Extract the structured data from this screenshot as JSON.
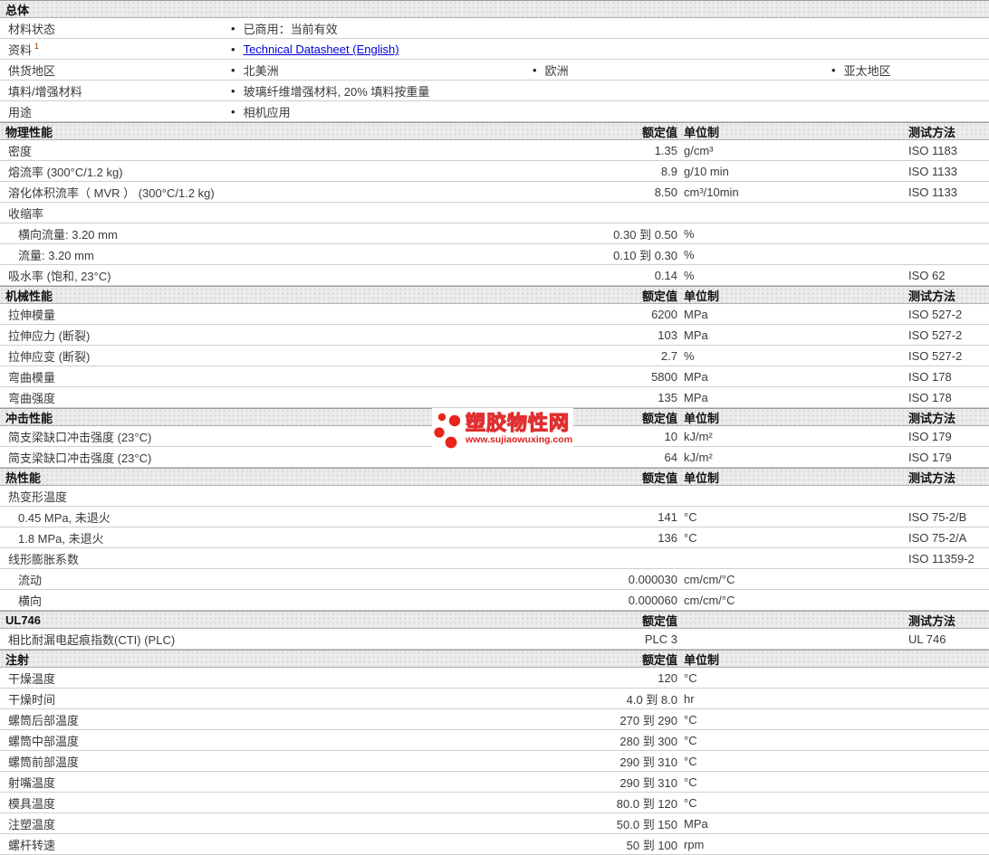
{
  "watermark": {
    "name": "塑胶物性网",
    "url": "www.sujiaowuxing.com"
  },
  "colors": {
    "accent_red": "#e02020",
    "link_blue": "#0000dd",
    "header_bg": "#ececec",
    "row_border": "#cfcfcf"
  },
  "sections": [
    {
      "id": "general",
      "type": "general",
      "title": "总体",
      "rows": [
        {
          "label": "材料状态",
          "items": [
            {
              "text": "已商用：当前有效"
            }
          ]
        },
        {
          "label": "资料",
          "label_sup": "1",
          "items": [
            {
              "text": "Technical Datasheet (English)",
              "link": true
            }
          ]
        },
        {
          "label": "供货地区",
          "items": [
            {
              "text": "北美洲"
            },
            {
              "text": "欧洲"
            },
            {
              "text": "亚太地区"
            }
          ]
        },
        {
          "label": "填料/增强材料",
          "items": [
            {
              "text": "玻璃纤维增强材料, 20% 填料按重量"
            }
          ]
        },
        {
          "label": "用途",
          "items": [
            {
              "text": "相机应用"
            }
          ]
        }
      ]
    },
    {
      "id": "physical",
      "type": "props",
      "title": "物理性能",
      "columns": {
        "value": "额定值",
        "unit": "单位制",
        "method": "测试方法"
      },
      "rows": [
        {
          "label": "密度",
          "value": "1.35",
          "unit": "g/cm³",
          "method": "ISO 1183"
        },
        {
          "label": "熔流率  (300°C/1.2 kg)",
          "value": "8.9",
          "unit": "g/10 min",
          "method": "ISO 1133"
        },
        {
          "label": "溶化体积流率（ MVR ）  (300°C/1.2 kg)",
          "value": "8.50",
          "unit": "cm³/10min",
          "method": "ISO 1133"
        },
        {
          "label": "收缩率"
        },
        {
          "label": "横向流量: 3.20 mm",
          "indent": true,
          "value": "0.30 到  0.50",
          "unit": "%"
        },
        {
          "label": "流量: 3.20 mm",
          "indent": true,
          "value": "0.10 到  0.30",
          "unit": "%"
        },
        {
          "label": "吸水率  (饱和, 23°C)",
          "value": "0.14",
          "unit": "%",
          "method": "ISO 62"
        }
      ]
    },
    {
      "id": "mechanical",
      "type": "props",
      "title": "机械性能",
      "columns": {
        "value": "额定值",
        "unit": "单位制",
        "method": "测试方法"
      },
      "rows": [
        {
          "label": "拉伸模量",
          "value": "6200",
          "unit": "MPa",
          "method": "ISO 527-2"
        },
        {
          "label": "拉伸应力  (断裂)",
          "value": "103",
          "unit": "MPa",
          "method": "ISO 527-2"
        },
        {
          "label": "拉伸应变  (断裂)",
          "value": "2.7",
          "unit": "%",
          "method": "ISO 527-2"
        },
        {
          "label": "弯曲模量",
          "value": "5800",
          "unit": "MPa",
          "method": "ISO 178"
        },
        {
          "label": "弯曲强度",
          "value": "135",
          "unit": "MPa",
          "method": "ISO 178"
        }
      ]
    },
    {
      "id": "impact",
      "type": "props",
      "title": "冲击性能",
      "columns": {
        "value": "额定值",
        "unit": "单位制",
        "method": "测试方法"
      },
      "rows": [
        {
          "label": "简支梁缺口冲击强度  (23°C)",
          "value": "10",
          "unit": "kJ/m²",
          "method": "ISO 179"
        },
        {
          "label": "简支梁缺口冲击强度  (23°C)",
          "value": "64",
          "unit": "kJ/m²",
          "method": "ISO 179"
        }
      ]
    },
    {
      "id": "thermal",
      "type": "props",
      "title": "热性能",
      "columns": {
        "value": "额定值",
        "unit": "单位制",
        "method": "测试方法"
      },
      "rows": [
        {
          "label": "热变形温度"
        },
        {
          "label": "0.45 MPa, 未退火",
          "indent": true,
          "value": "141",
          "unit": "°C",
          "method": "ISO 75-2/B"
        },
        {
          "label": "1.8 MPa, 未退火",
          "indent": true,
          "value": "136",
          "unit": "°C",
          "method": "ISO 75-2/A"
        },
        {
          "label": "线形膨胀系数",
          "method": "ISO 11359-2"
        },
        {
          "label": "流动",
          "indent": true,
          "value": "0.000030",
          "unit": "cm/cm/°C"
        },
        {
          "label": "横向",
          "indent": true,
          "value": "0.000060",
          "unit": "cm/cm/°C"
        }
      ]
    },
    {
      "id": "ul746",
      "type": "props",
      "title": "UL746",
      "columns": {
        "value": "额定值",
        "method": "测试方法"
      },
      "rows": [
        {
          "label": "相比耐漏电起痕指数(CTI) (PLC)",
          "value": "PLC 3",
          "method": "UL 746"
        }
      ]
    },
    {
      "id": "injection",
      "type": "props",
      "title": "注射",
      "columns": {
        "value": "额定值",
        "unit": "单位制"
      },
      "rows": [
        {
          "label": "干燥温度",
          "value": "120",
          "unit": "°C"
        },
        {
          "label": "干燥时间",
          "value": "4.0 到  8.0",
          "unit": "hr"
        },
        {
          "label": "螺筒后部温度",
          "value": "270 到  290",
          "unit": "°C"
        },
        {
          "label": "螺筒中部温度",
          "value": "280 到  300",
          "unit": "°C"
        },
        {
          "label": "螺筒前部温度",
          "value": "290 到  310",
          "unit": "°C"
        },
        {
          "label": "射嘴温度",
          "value": "290 到  310",
          "unit": "°C"
        },
        {
          "label": "模具温度",
          "value": "80.0 到  120",
          "unit": "°C"
        },
        {
          "label": "注塑温度",
          "value": "50.0 到  150",
          "unit": "MPa"
        },
        {
          "label": "螺杆转速",
          "value": "50 到  100",
          "unit": "rpm"
        }
      ]
    }
  ]
}
